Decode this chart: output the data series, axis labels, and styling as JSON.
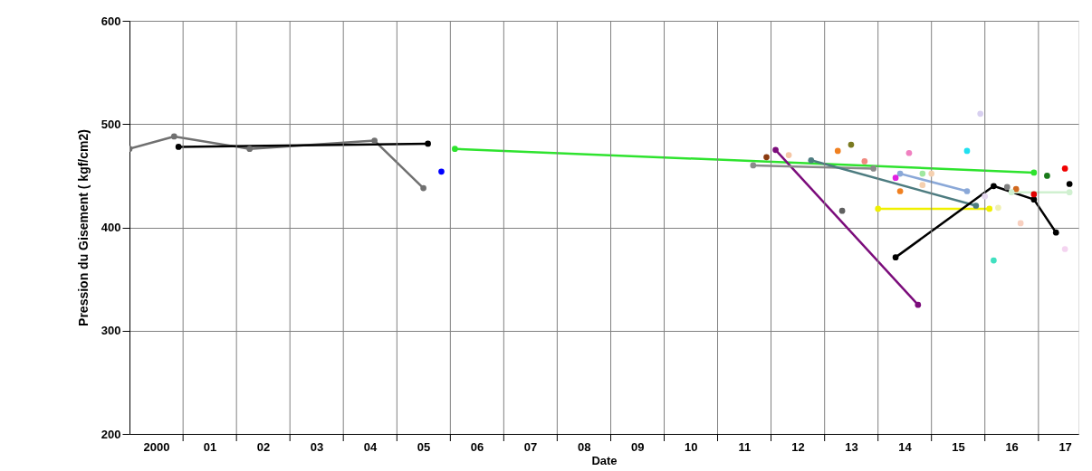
{
  "chart_data": {
    "type": "line",
    "xlabel": "Date",
    "ylabel": "Pression du Gisement ( kgf/cm2)",
    "xlim": [
      "2000-01",
      "2017-10"
    ],
    "ylim": [
      200,
      600
    ],
    "xticks": [
      {
        "value": "2000-07",
        "label": "2000"
      },
      {
        "value": "2001",
        "label": null
      },
      {
        "value": "2001-07",
        "label": "01"
      },
      {
        "value": "2002",
        "label": null
      },
      {
        "value": "2002-07",
        "label": "02"
      },
      {
        "value": "2003",
        "label": null
      },
      {
        "value": "2003-07",
        "label": "03"
      },
      {
        "value": "2004",
        "label": null
      },
      {
        "value": "2004-07",
        "label": "04"
      },
      {
        "value": "2005",
        "label": null
      },
      {
        "value": "2005-07",
        "label": "05"
      },
      {
        "value": "2006",
        "label": null
      },
      {
        "value": "2006-07",
        "label": "06"
      },
      {
        "value": "2007",
        "label": null
      },
      {
        "value": "2007-07",
        "label": "07"
      },
      {
        "value": "2008",
        "label": null
      },
      {
        "value": "2008-07",
        "label": "08"
      },
      {
        "value": "2009",
        "label": null
      },
      {
        "value": "2009-07",
        "label": "09"
      },
      {
        "value": "2010",
        "label": null
      },
      {
        "value": "2010-07",
        "label": "10"
      },
      {
        "value": "2011",
        "label": null
      },
      {
        "value": "2011-07",
        "label": "11"
      },
      {
        "value": "2012",
        "label": null
      },
      {
        "value": "2012-07",
        "label": "12"
      },
      {
        "value": "2013",
        "label": null
      },
      {
        "value": "2013-07",
        "label": "13"
      },
      {
        "value": "2014",
        "label": null
      },
      {
        "value": "2014-07",
        "label": "14"
      },
      {
        "value": "2015",
        "label": null
      },
      {
        "value": "2015-07",
        "label": "15"
      },
      {
        "value": "2016",
        "label": null
      },
      {
        "value": "2016-07",
        "label": "16"
      },
      {
        "value": "2017",
        "label": null
      },
      {
        "value": "2017-07",
        "label": "17"
      }
    ],
    "yticks": [
      200,
      300,
      400,
      500,
      600
    ],
    "grid": true,
    "marker": "circle",
    "line_style": "solid",
    "series": [
      {
        "color": "#707070",
        "x": [
          "2000-01",
          "2000-11",
          "2002-04",
          "2004-08",
          "2005-07"
        ],
        "values": [
          476,
          488,
          476,
          484,
          438
        ]
      },
      {
        "color": "#000000",
        "x": [
          "2000-12",
          "2005-08"
        ],
        "values": [
          478,
          481
        ]
      },
      {
        "type": "scatter",
        "color": "#0000ff",
        "x": [
          "2005-11"
        ],
        "values": [
          454
        ]
      },
      {
        "color": "#2ee32e",
        "x": [
          "2006-02",
          "2016-12"
        ],
        "values": [
          476,
          453
        ]
      },
      {
        "type": "scatter",
        "color": "#8b3a10",
        "x": [
          "2011-12"
        ],
        "values": [
          468
        ]
      },
      {
        "type": "scatter",
        "color": "#f5c6a5",
        "x": [
          "2012-05"
        ],
        "values": [
          470
        ]
      },
      {
        "color": "#7b0c7b",
        "x": [
          "2012-02",
          "2014-10"
        ],
        "values": [
          475,
          325
        ]
      },
      {
        "color": "#8a8a8a",
        "x": [
          "2011-09",
          "2013-12"
        ],
        "values": [
          460,
          457
        ]
      },
      {
        "color": "#4d7c80",
        "x": [
          "2012-10",
          "2015-11"
        ],
        "values": [
          465,
          421
        ]
      },
      {
        "type": "scatter",
        "color": "#f08020",
        "x": [
          "2013-04"
        ],
        "values": [
          474
        ]
      },
      {
        "type": "scatter",
        "color": "#7a7a20",
        "x": [
          "2013-07"
        ],
        "values": [
          480
        ]
      },
      {
        "type": "scatter",
        "color": "#f08a80",
        "x": [
          "2013-10"
        ],
        "values": [
          464
        ]
      },
      {
        "type": "scatter",
        "color": "#606060",
        "x": [
          "2013-05"
        ],
        "values": [
          416
        ]
      },
      {
        "color": "#8aa8d8",
        "x": [
          "2014-06",
          "2015-09"
        ],
        "values": [
          452,
          435
        ]
      },
      {
        "type": "scatter",
        "color": "#e020e0",
        "x": [
          "2014-05"
        ],
        "values": [
          448
        ]
      },
      {
        "type": "scatter",
        "color": "#f080c0",
        "x": [
          "2014-08"
        ],
        "values": [
          472
        ]
      },
      {
        "type": "scatter",
        "color": "#f08020",
        "x": [
          "2014-06"
        ],
        "values": [
          435
        ]
      },
      {
        "type": "scatter",
        "color": "#a0e8a0",
        "x": [
          "2014-11"
        ],
        "values": [
          452
        ]
      },
      {
        "type": "scatter",
        "color": "#f5d0b0",
        "x": [
          "2015-01",
          "2014-11"
        ],
        "values": [
          452,
          441
        ]
      },
      {
        "color": "#f0f000",
        "x": [
          "2014-01",
          "2016-02"
        ],
        "values": [
          418,
          418
        ]
      },
      {
        "type": "scatter",
        "color": "#20e0f0",
        "x": [
          "2015-09"
        ],
        "values": [
          474
        ]
      },
      {
        "type": "scatter",
        "color": "#d8d0f0",
        "x": [
          "2015-12"
        ],
        "values": [
          510
        ]
      },
      {
        "color": "#000000",
        "x": [
          "2014-05",
          "2016-03",
          "2016-12",
          "2017-05"
        ],
        "values": [
          371,
          440,
          427,
          395
        ]
      },
      {
        "type": "scatter",
        "color": "#808080",
        "x": [
          "2016-06"
        ],
        "values": [
          439
        ]
      },
      {
        "type": "scatter",
        "color": "#d2691e",
        "x": [
          "2016-08"
        ],
        "values": [
          437
        ]
      },
      {
        "type": "scatter",
        "color": "#e00000",
        "x": [
          "2016-12"
        ],
        "values": [
          432
        ]
      },
      {
        "type": "scatter",
        "color": "#1a7a1a",
        "x": [
          "2017-03"
        ],
        "values": [
          450
        ]
      },
      {
        "type": "scatter",
        "color": "#f00000",
        "x": [
          "2017-07"
        ],
        "values": [
          457
        ]
      },
      {
        "type": "scatter",
        "color": "#000000",
        "x": [
          "2017-08"
        ],
        "values": [
          442
        ]
      },
      {
        "color": "#d0f0d0",
        "x": [
          "2016-07",
          "2017-08"
        ],
        "values": [
          434,
          434
        ]
      },
      {
        "type": "scatter",
        "color": "#40e0c0",
        "x": [
          "2016-03"
        ],
        "values": [
          368
        ]
      },
      {
        "type": "scatter",
        "color": "#f8d0c0",
        "x": [
          "2016-09"
        ],
        "values": [
          404
        ]
      },
      {
        "type": "scatter",
        "color": "#f4d4f0",
        "x": [
          "2017-07"
        ],
        "values": [
          379
        ]
      },
      {
        "type": "scatter",
        "color": "#f0f0b0",
        "x": [
          "2016-04"
        ],
        "values": [
          419
        ]
      },
      {
        "type": "scatter",
        "color": "#e6d8f0",
        "x": [
          "2016-01"
        ],
        "values": [
          430
        ]
      }
    ]
  }
}
